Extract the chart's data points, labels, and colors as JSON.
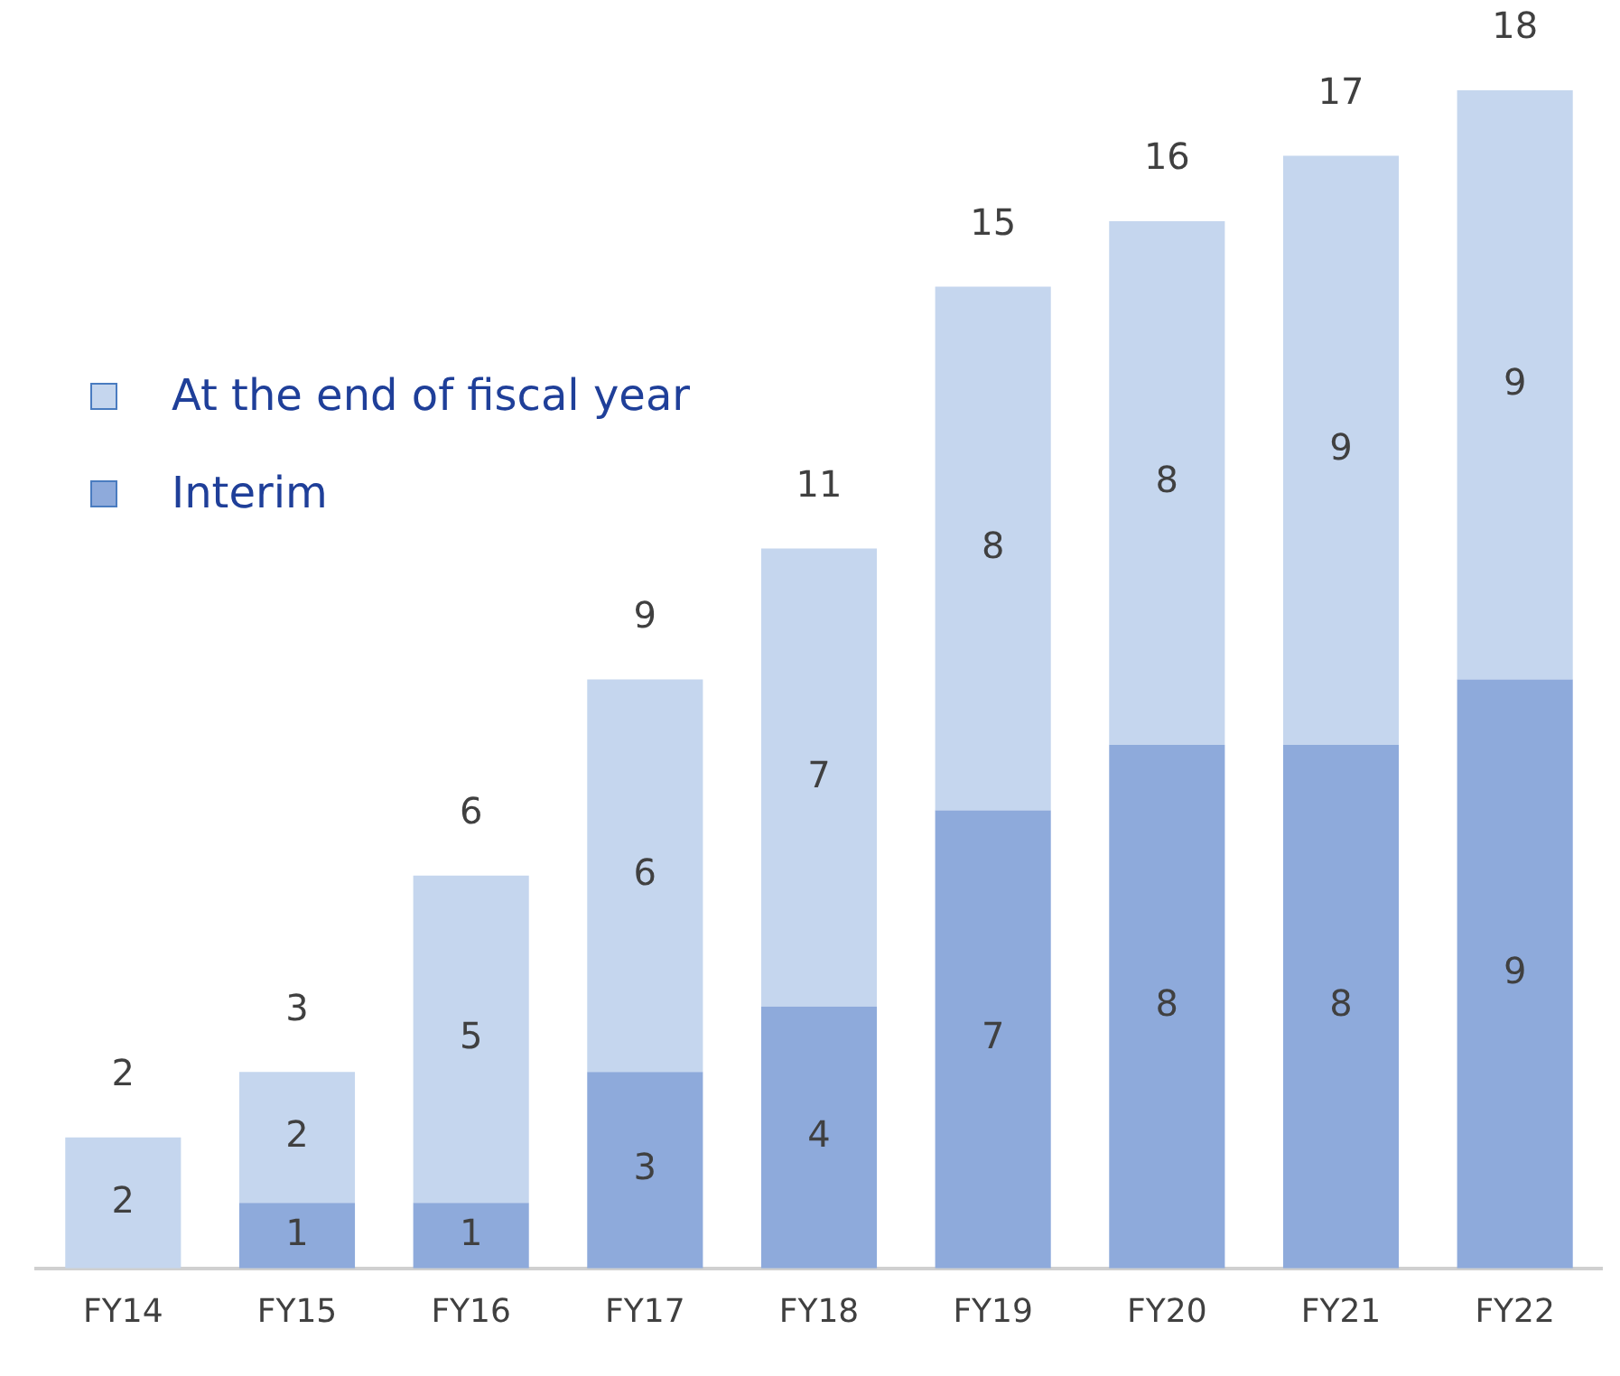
{
  "chart_data": {
    "type": "bar",
    "stacked": true,
    "categories": [
      "FY14",
      "FY15",
      "FY16",
      "FY17",
      "FY18",
      "FY19",
      "FY20",
      "FY21",
      "FY22"
    ],
    "series": [
      {
        "name": "Interim",
        "color": "#8eaadb",
        "values": [
          0,
          1,
          1,
          3,
          4,
          7,
          8,
          8,
          9
        ],
        "value_labels": [
          null,
          "1",
          "1",
          "3",
          "4",
          "7",
          "8",
          "8",
          "9"
        ]
      },
      {
        "name": "At the end of fiscal year",
        "color": "#c5d6ee",
        "values": [
          2,
          2,
          5,
          6,
          7,
          8,
          8,
          9,
          9
        ],
        "value_labels": [
          "2",
          "2",
          "5",
          "6",
          "7",
          "8",
          "8",
          "9",
          "9"
        ]
      }
    ],
    "totals": [
      "2",
      "3",
      "6",
      "9",
      "11",
      "15",
      "16",
      "17",
      "18"
    ],
    "legend": "top left",
    "grid": false,
    "tick_labels": "x"
  }
}
